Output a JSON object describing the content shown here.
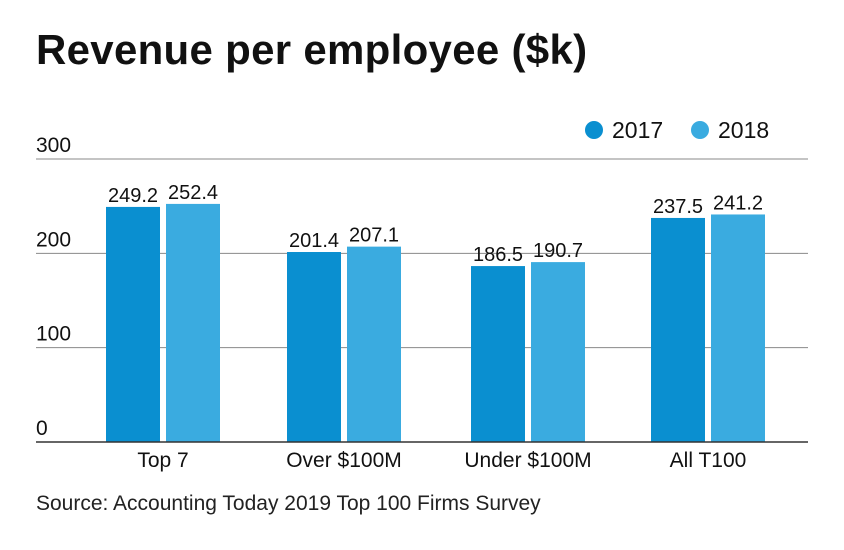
{
  "chart_data": {
    "type": "bar",
    "title": "Revenue per employee ($k)",
    "categories": [
      "Top 7",
      "Over $100M",
      "Under $100M",
      "All T100"
    ],
    "series": [
      {
        "name": "2017",
        "values": [
          249.2,
          201.4,
          186.5,
          237.5
        ],
        "color": "#0a8fd0"
      },
      {
        "name": "2018",
        "values": [
          252.4,
          207.1,
          190.7,
          241.2
        ],
        "color": "#3aabe0"
      }
    ],
    "ylim": [
      0,
      300
    ],
    "yticks": [
      "0",
      "100",
      "200",
      "300"
    ],
    "ytick_values": [
      0,
      100,
      200,
      300
    ],
    "grid": true,
    "legend": "top-right",
    "xlabel": "",
    "ylabel": ""
  },
  "source": "Source: Accounting Today 2019 Top 100 Firms Survey"
}
